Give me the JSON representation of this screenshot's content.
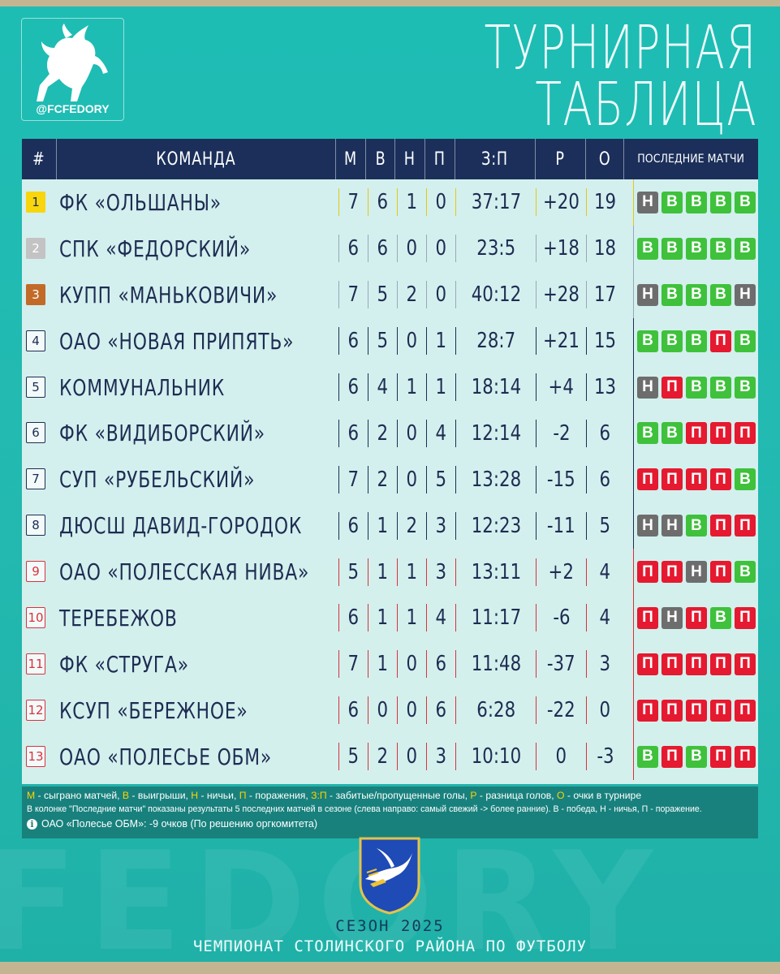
{
  "brand": {
    "handle": "@FCFEDORY",
    "watermark": "FEDORY"
  },
  "title": {
    "line1": "ТУРНИРНАЯ",
    "line2": "ТАБЛИЦА"
  },
  "columns": {
    "pos": "#",
    "team": "КОМАНДА",
    "m": "М",
    "w": "В",
    "d": "Н",
    "l": "П",
    "goals": "З:П",
    "diff": "Р",
    "points": "О",
    "last": "ПОСЛЕДНИЕ МАТЧИ"
  },
  "colors": {
    "win": "#3fc13c",
    "draw": "#6d6d6d",
    "loss": "#e5192f",
    "gold": "#f8d50d",
    "silver": "#c3c3c3",
    "bronze": "#c26b28",
    "header": "#1b2f5a"
  },
  "rows": [
    {
      "pos": "1",
      "team": "ФК «ОЛЬШАНЫ»",
      "m": "7",
      "w": "6",
      "d": "1",
      "l": "0",
      "goals": "37:17",
      "diff": "+20",
      "points": "19",
      "last": [
        "Н",
        "В",
        "В",
        "В",
        "В"
      ],
      "zone": "gold"
    },
    {
      "pos": "2",
      "team": "СПК «ФЕДОРСКИЙ»",
      "m": "6",
      "w": "6",
      "d": "0",
      "l": "0",
      "goals": "23:5",
      "diff": "+18",
      "points": "18",
      "last": [
        "В",
        "В",
        "В",
        "В",
        "В"
      ],
      "zone": "silver"
    },
    {
      "pos": "3",
      "team": "КУПП «МАНЬКОВИЧИ»",
      "m": "7",
      "w": "5",
      "d": "2",
      "l": "0",
      "goals": "40:12",
      "diff": "+28",
      "points": "17",
      "last": [
        "Н",
        "В",
        "В",
        "В",
        "Н"
      ],
      "zone": "bronze"
    },
    {
      "pos": "4",
      "team": "ОАО «НОВАЯ ПРИПЯТЬ»",
      "m": "6",
      "w": "5",
      "d": "0",
      "l": "1",
      "goals": "28:7",
      "diff": "+21",
      "points": "15",
      "last": [
        "В",
        "В",
        "В",
        "П",
        "В"
      ],
      "zone": "mid"
    },
    {
      "pos": "5",
      "team": "КОММУНАЛЬНИК",
      "m": "6",
      "w": "4",
      "d": "1",
      "l": "1",
      "goals": "18:14",
      "diff": "+4",
      "points": "13",
      "last": [
        "Н",
        "П",
        "В",
        "В",
        "В"
      ],
      "zone": "mid"
    },
    {
      "pos": "6",
      "team": "ФК «ВИДИБОРСКИЙ»",
      "m": "6",
      "w": "2",
      "d": "0",
      "l": "4",
      "goals": "12:14",
      "diff": "-2",
      "points": "6",
      "last": [
        "В",
        "В",
        "П",
        "П",
        "П"
      ],
      "zone": "mid"
    },
    {
      "pos": "7",
      "team": "СУП «РУБЕЛЬСКИЙ»",
      "m": "7",
      "w": "2",
      "d": "0",
      "l": "5",
      "goals": "13:28",
      "diff": "-15",
      "points": "6",
      "last": [
        "П",
        "П",
        "П",
        "П",
        "В"
      ],
      "zone": "mid"
    },
    {
      "pos": "8",
      "team": "ДЮСШ ДАВИД-ГОРОДОК",
      "m": "6",
      "w": "1",
      "d": "2",
      "l": "3",
      "goals": "12:23",
      "diff": "-11",
      "points": "5",
      "last": [
        "Н",
        "Н",
        "В",
        "П",
        "П"
      ],
      "zone": "mid"
    },
    {
      "pos": "9",
      "team": "ОАО «ПОЛЕССКАЯ НИВА»",
      "m": "5",
      "w": "1",
      "d": "1",
      "l": "3",
      "goals": "13:11",
      "diff": "+2",
      "points": "4",
      "last": [
        "П",
        "П",
        "Н",
        "П",
        "В"
      ],
      "zone": "low"
    },
    {
      "pos": "10",
      "team": "ТЕРЕБЕЖОВ",
      "m": "6",
      "w": "1",
      "d": "1",
      "l": "4",
      "goals": "11:17",
      "diff": "-6",
      "points": "4",
      "last": [
        "П",
        "Н",
        "П",
        "В",
        "П"
      ],
      "zone": "low"
    },
    {
      "pos": "11",
      "team": "ФК «СТРУГА»",
      "m": "7",
      "w": "1",
      "d": "0",
      "l": "6",
      "goals": "11:48",
      "diff": "-37",
      "points": "3",
      "last": [
        "П",
        "П",
        "П",
        "П",
        "П"
      ],
      "zone": "low"
    },
    {
      "pos": "12",
      "team": "КСУП «БЕРЕЖНОЕ»",
      "m": "6",
      "w": "0",
      "d": "0",
      "l": "6",
      "goals": "6:28",
      "diff": "-22",
      "points": "0",
      "last": [
        "П",
        "П",
        "П",
        "П",
        "П"
      ],
      "zone": "low"
    },
    {
      "pos": "13",
      "team": "ОАО «ПОЛЕСЬЕ ОБМ»",
      "m": "5",
      "w": "2",
      "d": "0",
      "l": "3",
      "goals": "10:10",
      "diff": "0",
      "points": "-3",
      "last": [
        "В",
        "П",
        "В",
        "П",
        "П"
      ],
      "zone": "low"
    }
  ],
  "legend": {
    "m_key": "М",
    "m_text": " - сыграно матчей, ",
    "w_key": "В",
    "w_text": " - выигрыши, ",
    "d_key": "Н",
    "d_text": " - ничьи, ",
    "l_key": "П",
    "l_text": " - поражения, ",
    "g_key": "З:П",
    "g_text": " - забитые/пропущенные голы, ",
    "r_key": "Р",
    "r_text": " - разница голов, ",
    "o_key": "О",
    "o_text": " - очки в турнире",
    "line2": "В колонке \"Последние матчи\" показаны результаты 5 последних матчей в сезоне (слева направо: самый свежий -> более ранние). В - победа, Н - ничья, П - поражение.",
    "note": "ОАО «Полесье ОБМ»: -9 очков (По решению оргкомитета)"
  },
  "footer": {
    "season": "СЕЗОН 2025",
    "championship": "ЧЕМПИОНАТ СТОЛИНСКОГО РАЙОНА ПО ФУТБОЛУ"
  }
}
